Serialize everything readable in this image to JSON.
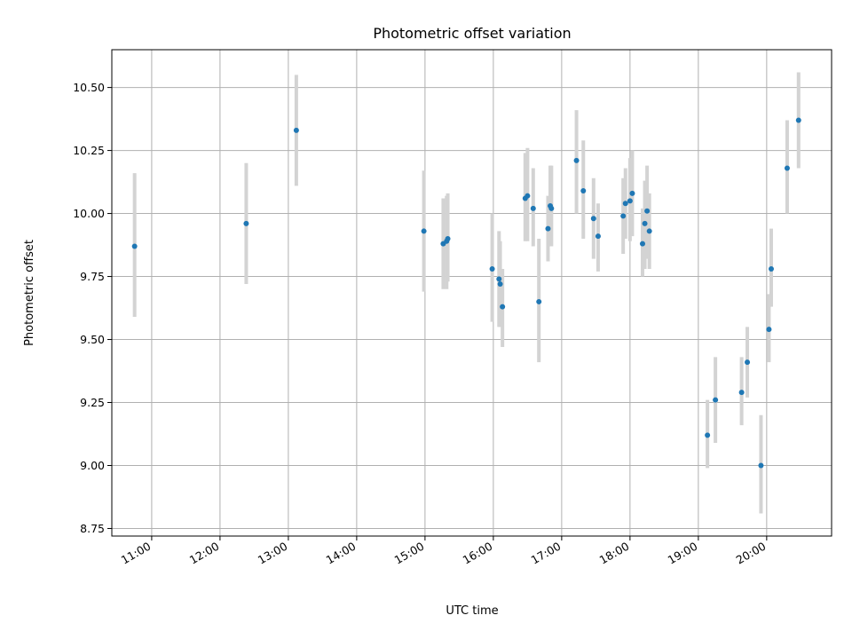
{
  "chart_data": {
    "type": "scatter",
    "title": "Photometric offset variation",
    "xlabel": "UTC time",
    "ylabel": "Photometric offset",
    "xlim": [
      "10:25",
      "20:57"
    ],
    "ylim": [
      8.72,
      10.65
    ],
    "x_ticks": [
      "11:00",
      "12:00",
      "13:00",
      "14:00",
      "15:00",
      "16:00",
      "17:00",
      "18:00",
      "19:00",
      "20:00"
    ],
    "y_ticks": [
      8.75,
      9.0,
      9.25,
      9.5,
      9.75,
      10.0,
      10.25,
      10.5
    ],
    "y_tick_labels": [
      "8.75",
      "9.00",
      "9.25",
      "9.50",
      "9.75",
      "10.00",
      "10.25",
      "10.50"
    ],
    "grid": true,
    "marker_color": "#1f77b4",
    "errorbar_color": "#d3d3d3",
    "points": [
      {
        "x": "10:45",
        "y": 9.87,
        "lo": 9.59,
        "hi": 10.16
      },
      {
        "x": "12:23",
        "y": 9.96,
        "lo": 9.72,
        "hi": 10.2
      },
      {
        "x": "13:07",
        "y": 10.33,
        "lo": 10.11,
        "hi": 10.55
      },
      {
        "x": "14:59",
        "y": 9.93,
        "lo": 9.69,
        "hi": 10.17
      },
      {
        "x": "15:16",
        "y": 9.88,
        "lo": 9.7,
        "hi": 10.06
      },
      {
        "x": "15:19",
        "y": 9.89,
        "lo": 9.7,
        "hi": 10.07
      },
      {
        "x": "15:20",
        "y": 9.9,
        "lo": 9.73,
        "hi": 10.08
      },
      {
        "x": "15:59",
        "y": 9.78,
        "lo": 9.57,
        "hi": 10.0
      },
      {
        "x": "16:05",
        "y": 9.74,
        "lo": 9.55,
        "hi": 9.93
      },
      {
        "x": "16:06",
        "y": 9.72,
        "lo": 9.55,
        "hi": 9.89
      },
      {
        "x": "16:08",
        "y": 9.63,
        "lo": 9.47,
        "hi": 9.78
      },
      {
        "x": "16:28",
        "y": 10.06,
        "lo": 9.89,
        "hi": 10.24
      },
      {
        "x": "16:30",
        "y": 10.07,
        "lo": 9.89,
        "hi": 10.26
      },
      {
        "x": "16:35",
        "y": 10.02,
        "lo": 9.87,
        "hi": 10.18
      },
      {
        "x": "16:40",
        "y": 9.65,
        "lo": 9.41,
        "hi": 9.9
      },
      {
        "x": "16:48",
        "y": 9.94,
        "lo": 9.81,
        "hi": 10.07
      },
      {
        "x": "16:50",
        "y": 10.03,
        "lo": 9.87,
        "hi": 10.19
      },
      {
        "x": "16:51",
        "y": 10.02,
        "lo": 9.87,
        "hi": 10.19
      },
      {
        "x": "17:13",
        "y": 10.21,
        "lo": 10.0,
        "hi": 10.41
      },
      {
        "x": "17:19",
        "y": 10.09,
        "lo": 9.9,
        "hi": 10.29
      },
      {
        "x": "17:28",
        "y": 9.98,
        "lo": 9.82,
        "hi": 10.14
      },
      {
        "x": "17:32",
        "y": 9.91,
        "lo": 9.77,
        "hi": 10.04
      },
      {
        "x": "17:54",
        "y": 9.99,
        "lo": 9.84,
        "hi": 10.14
      },
      {
        "x": "17:56",
        "y": 10.04,
        "lo": 9.9,
        "hi": 10.18
      },
      {
        "x": "18:00",
        "y": 10.05,
        "lo": 9.89,
        "hi": 10.22
      },
      {
        "x": "18:02",
        "y": 10.08,
        "lo": 9.91,
        "hi": 10.25
      },
      {
        "x": "18:11",
        "y": 9.88,
        "lo": 9.75,
        "hi": 10.02
      },
      {
        "x": "18:13",
        "y": 9.96,
        "lo": 9.78,
        "hi": 10.13
      },
      {
        "x": "18:15",
        "y": 10.01,
        "lo": 9.82,
        "hi": 10.19
      },
      {
        "x": "18:17",
        "y": 9.93,
        "lo": 9.78,
        "hi": 10.08
      },
      {
        "x": "19:08",
        "y": 9.12,
        "lo": 8.99,
        "hi": 9.26
      },
      {
        "x": "19:15",
        "y": 9.26,
        "lo": 9.09,
        "hi": 9.43
      },
      {
        "x": "19:38",
        "y": 9.29,
        "lo": 9.16,
        "hi": 9.43
      },
      {
        "x": "19:43",
        "y": 9.41,
        "lo": 9.27,
        "hi": 9.55
      },
      {
        "x": "19:55",
        "y": 9.0,
        "lo": 8.81,
        "hi": 9.2
      },
      {
        "x": "20:02",
        "y": 9.54,
        "lo": 9.41,
        "hi": 9.68
      },
      {
        "x": "20:04",
        "y": 9.78,
        "lo": 9.63,
        "hi": 9.94
      },
      {
        "x": "20:18",
        "y": 10.18,
        "lo": 10.0,
        "hi": 10.37
      },
      {
        "x": "20:28",
        "y": 10.37,
        "lo": 10.18,
        "hi": 10.56
      }
    ]
  }
}
